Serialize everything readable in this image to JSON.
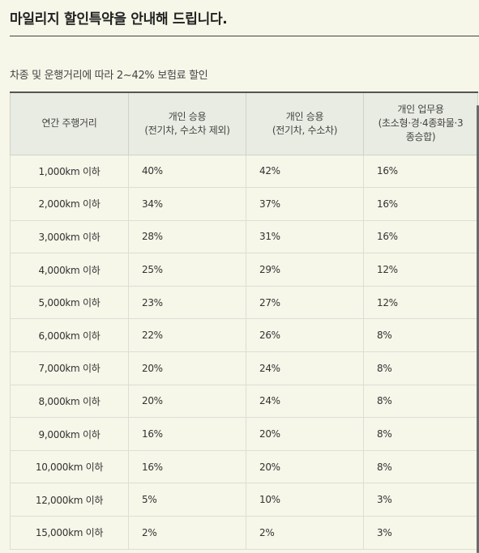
{
  "header": {
    "title": "마일리지 할인특약을 안내해 드립니다.",
    "subtitle": "차종 및 운행거리에 따라 2~42% 보험료 할인"
  },
  "table": {
    "columns": [
      [
        "연간 주행거리"
      ],
      [
        "개인 승용",
        "(전기차, 수소차 제외)"
      ],
      [
        "개인 승용",
        "(전기차, 수소차)"
      ],
      [
        "개인 업무용",
        "(초소형·경·4종화물·3",
        "종승합)"
      ]
    ],
    "rows": [
      [
        "1,000km 이하",
        "40%",
        "42%",
        "16%"
      ],
      [
        "2,000km 이하",
        "34%",
        "37%",
        "16%"
      ],
      [
        "3,000km 이하",
        "28%",
        "31%",
        "16%"
      ],
      [
        "4,000km 이하",
        "25%",
        "29%",
        "12%"
      ],
      [
        "5,000km 이하",
        "23%",
        "27%",
        "12%"
      ],
      [
        "6,000km 이하",
        "22%",
        "26%",
        "8%"
      ],
      [
        "7,000km 이하",
        "20%",
        "24%",
        "8%"
      ],
      [
        "8,000km 이하",
        "20%",
        "24%",
        "8%"
      ],
      [
        "9,000km 이하",
        "16%",
        "20%",
        "8%"
      ],
      [
        "10,000km 이하",
        "16%",
        "20%",
        "8%"
      ],
      [
        "12,000km 이하",
        "5%",
        "10%",
        "3%"
      ],
      [
        "15,000km 이하",
        "2%",
        "2%",
        "3%"
      ]
    ]
  }
}
